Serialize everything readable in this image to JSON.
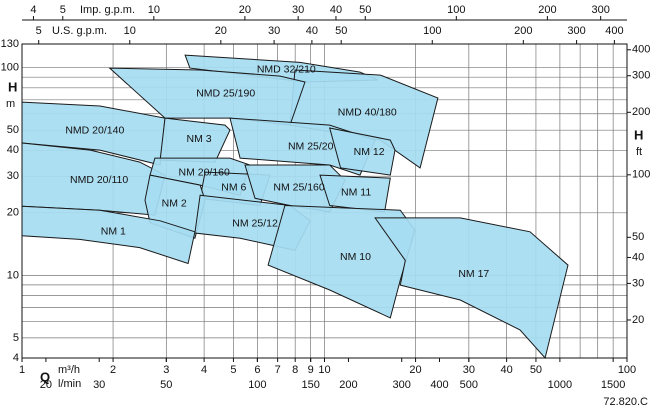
{
  "chart_data": {
    "type": "region",
    "log_x": true,
    "log_y": true,
    "grid": true,
    "fill": "#a6dcf2",
    "stroke": "#1a1a1a",
    "x_label": "Q",
    "x_unit": "m³/h",
    "y_label": "H",
    "y_unit": "m",
    "xlim": [
      1,
      100
    ],
    "ylim": [
      4,
      130
    ],
    "xticks": [
      1,
      2,
      3,
      4,
      5,
      6,
      7,
      8,
      9,
      10,
      20,
      30,
      40,
      50,
      100
    ],
    "yticks": [
      4,
      5,
      10,
      20,
      30,
      40,
      50,
      100,
      130
    ],
    "xgrid_minor": [
      60,
      70,
      80,
      90
    ],
    "ygrid_minor": [
      6,
      7,
      8,
      9,
      60,
      70,
      80,
      90
    ],
    "x2": {
      "label": "l/min",
      "lim": [
        16.67,
        1666.67
      ],
      "ticks": [
        20,
        30,
        50,
        100,
        150,
        200,
        300,
        400,
        500,
        1000,
        1500
      ]
    },
    "x3": {
      "label": "Imp. g.p.m.",
      "lim": [
        3.666,
        366.6
      ],
      "ticks": [
        4,
        5,
        10,
        20,
        30,
        40,
        50,
        100,
        200,
        300
      ]
    },
    "x4": {
      "label": "U.S. g.p.m.",
      "lim": [
        4.403,
        440.3
      ],
      "ticks": [
        5,
        10,
        20,
        30,
        40,
        50,
        100,
        200,
        300,
        400
      ]
    },
    "y2": {
      "label": "H",
      "unit": "ft",
      "lim": [
        13.12,
        426.5
      ],
      "ticks": [
        20,
        30,
        40,
        50,
        100,
        200,
        300,
        400
      ]
    },
    "regions": [
      {
        "name": "NMD 32/210",
        "points": [
          [
            3.46,
            115
          ],
          [
            8.3,
            106
          ],
          [
            13.1,
            95.2
          ],
          [
            15.0,
            87.2
          ],
          [
            8.62,
            85.3
          ],
          [
            3.59,
            99.5
          ]
        ]
      },
      {
        "name": "NMD 40/180",
        "points": [
          [
            7.99,
            97.4
          ],
          [
            15.3,
            92.1
          ],
          [
            23.7,
            71.4
          ],
          [
            20.7,
            32.9
          ],
          [
            15.3,
            44.8
          ],
          [
            7.69,
            52.9
          ]
        ]
      },
      {
        "name": "NMD 25/190",
        "points": [
          [
            1.95,
            99.5
          ],
          [
            3.88,
            97.4
          ],
          [
            7.13,
            91.1
          ],
          [
            8.62,
            85.3
          ],
          [
            7.69,
            52.9
          ],
          [
            4.87,
            57.2
          ],
          [
            2.97,
            57.2
          ]
        ]
      },
      {
        "name": "NMD 20/140",
        "points": [
          [
            1.0,
            68.3
          ],
          [
            1.81,
            65.4
          ],
          [
            2.97,
            57.2
          ],
          [
            2.86,
            34.0
          ],
          [
            1.81,
            40.1
          ],
          [
            1.0,
            43.4
          ]
        ]
      },
      {
        "name": "NM 25/20",
        "points": [
          [
            4.87,
            57.2
          ],
          [
            10.4,
            52.9
          ],
          [
            14.7,
            44.8
          ],
          [
            13.1,
            30.4
          ],
          [
            10.4,
            34.0
          ],
          [
            5.26,
            36.7
          ]
        ]
      },
      {
        "name": "NM 12",
        "points": [
          [
            10.4,
            51.2
          ],
          [
            16.5,
            44.8
          ],
          [
            17.1,
            40.1
          ],
          [
            16.5,
            30.4
          ],
          [
            11.3,
            32.9
          ]
        ]
      },
      {
        "name": "NM 3",
        "points": [
          [
            2.97,
            57.2
          ],
          [
            4.69,
            52.9
          ],
          [
            4.87,
            50.1
          ],
          [
            4.35,
            35.1
          ],
          [
            2.86,
            35.9
          ]
        ]
      },
      {
        "name": "NMD 20/110",
        "points": [
          [
            1.0,
            43.4
          ],
          [
            1.68,
            40.1
          ],
          [
            2.45,
            35.1
          ],
          [
            2.97,
            30.4
          ],
          [
            2.75,
            19.5
          ],
          [
            1.81,
            20.6
          ],
          [
            1.0,
            21.5
          ]
        ]
      },
      {
        "name": "NM 20/160",
        "points": [
          [
            2.75,
            36.7
          ],
          [
            4.87,
            36.7
          ],
          [
            5.67,
            34.0
          ],
          [
            5.26,
            24.3
          ],
          [
            3.88,
            27.2
          ],
          [
            2.65,
            30.4
          ]
        ]
      },
      {
        "name": "NM 6",
        "points": [
          [
            4.03,
            31.4
          ],
          [
            6.6,
            30.4
          ],
          [
            6.12,
            21.7
          ],
          [
            3.88,
            23.5
          ]
        ]
      },
      {
        "name": "NM 25/160",
        "points": [
          [
            5.46,
            34.0
          ],
          [
            10.4,
            34.0
          ],
          [
            11.7,
            28.7
          ],
          [
            10.4,
            20.2
          ],
          [
            7.69,
            21.7
          ],
          [
            5.89,
            23.5
          ]
        ]
      },
      {
        "name": "NM 11",
        "points": [
          [
            9.66,
            30.4
          ],
          [
            16.5,
            29.4
          ],
          [
            15.8,
            20.2
          ],
          [
            10.4,
            21.7
          ]
        ]
      },
      {
        "name": "NM 2",
        "points": [
          [
            2.65,
            30.4
          ],
          [
            3.88,
            27.2
          ],
          [
            4.03,
            23.0
          ],
          [
            3.73,
            15.1
          ],
          [
            2.65,
            17.9
          ],
          [
            2.55,
            23.0
          ]
        ]
      },
      {
        "name": "NM 1",
        "points": [
          [
            1.0,
            21.5
          ],
          [
            1.81,
            20.6
          ],
          [
            2.86,
            18.3
          ],
          [
            3.73,
            16.2
          ],
          [
            3.54,
            11.4
          ],
          [
            2.45,
            13.6
          ],
          [
            1.55,
            14.9
          ],
          [
            1.0,
            15.5
          ]
        ]
      },
      {
        "name": "NM 25/12",
        "points": [
          [
            3.88,
            24.3
          ],
          [
            7.69,
            21.7
          ],
          [
            8.96,
            18.3
          ],
          [
            7.99,
            13.2
          ],
          [
            5.26,
            15.1
          ],
          [
            3.73,
            16.0
          ]
        ]
      },
      {
        "name": "NM 10",
        "points": [
          [
            7.4,
            21.7
          ],
          [
            17.8,
            20.6
          ],
          [
            19.9,
            16.5
          ],
          [
            17.8,
            9.5
          ],
          [
            16.5,
            6.24
          ],
          [
            10.4,
            8.5
          ],
          [
            6.51,
            11.2
          ]
        ]
      },
      {
        "name": "NM 17",
        "points": [
          [
            14.7,
            18.9
          ],
          [
            28.1,
            18.9
          ],
          [
            47.8,
            16.2
          ],
          [
            63.8,
            11.2
          ],
          [
            53.6,
            4.0
          ],
          [
            44.3,
            5.46
          ],
          [
            28.1,
            7.61
          ],
          [
            17.8,
            8.98
          ],
          [
            18.5,
            11.8
          ]
        ]
      }
    ],
    "note": "72.820.C"
  }
}
